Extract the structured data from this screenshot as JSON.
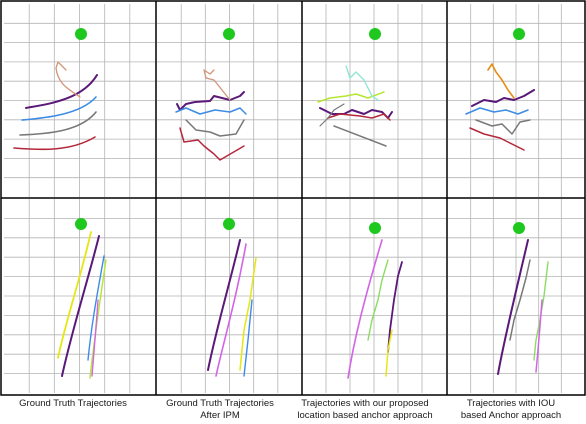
{
  "captions": [
    {
      "line1": "Ground Truth Trajectories",
      "line2": ""
    },
    {
      "line1": "Ground Truth Trajectories",
      "line2": "After IPM"
    },
    {
      "line1": "Trajectories with our proposed",
      "line2": "location based anchor approach"
    },
    {
      "line1": "Trajectories with IOU",
      "line2": "based Anchor approach"
    }
  ],
  "colors": {
    "grid": "#b4b4b4",
    "border": "#000000",
    "marker": "#1ec81e",
    "purple": "#5a1878",
    "blue": "#3c8ce6",
    "gray": "#787878",
    "crimson": "#b4283c",
    "tan": "#d29678",
    "yellow": "#e6e614",
    "magenta": "#d264e6",
    "lightgreen": "#8cdc64",
    "cyan": "#8ce6d2",
    "orange": "#e68c14",
    "lime": "#b4e632"
  }
}
